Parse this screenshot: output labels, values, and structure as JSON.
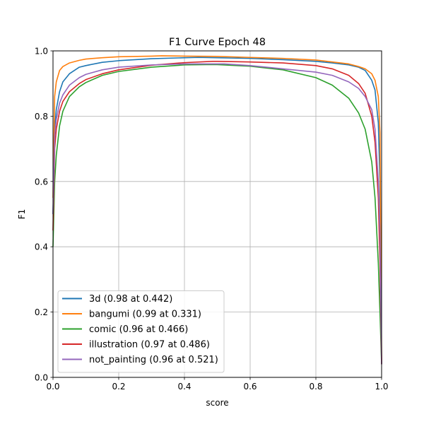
{
  "chart_data": {
    "type": "line",
    "title": "F1 Curve Epoch 48",
    "xlabel": "score",
    "ylabel": "F1",
    "xlim": [
      0,
      1
    ],
    "ylim": [
      0,
      1
    ],
    "xticks": [
      "0.0",
      "0.2",
      "0.4",
      "0.6",
      "0.8",
      "1.0"
    ],
    "yticks": [
      "0.0",
      "0.2",
      "0.4",
      "0.6",
      "0.8",
      "1.0"
    ],
    "grid": true,
    "legend_position": "bottom-left",
    "series": [
      {
        "name": "3d (0.98 at 0.442)",
        "color": "#1f77b4",
        "x": [
          0,
          0.005,
          0.01,
          0.02,
          0.03,
          0.05,
          0.08,
          0.1,
          0.15,
          0.2,
          0.3,
          0.4,
          0.442,
          0.5,
          0.6,
          0.7,
          0.8,
          0.85,
          0.9,
          0.93,
          0.95,
          0.97,
          0.98,
          0.99,
          0.995,
          1.0
        ],
        "y": [
          0.5,
          0.76,
          0.82,
          0.875,
          0.905,
          0.93,
          0.95,
          0.955,
          0.965,
          0.97,
          0.976,
          0.979,
          0.98,
          0.979,
          0.977,
          0.973,
          0.968,
          0.963,
          0.957,
          0.95,
          0.94,
          0.91,
          0.88,
          0.78,
          0.6,
          0.04
        ]
      },
      {
        "name": "bangumi (0.99 at 0.331)",
        "color": "#ff7f0e",
        "x": [
          0,
          0.005,
          0.01,
          0.02,
          0.03,
          0.05,
          0.08,
          0.1,
          0.15,
          0.2,
          0.3,
          0.331,
          0.4,
          0.5,
          0.6,
          0.7,
          0.8,
          0.85,
          0.9,
          0.93,
          0.95,
          0.97,
          0.98,
          0.99,
          0.995,
          1.0
        ],
        "y": [
          0.55,
          0.86,
          0.905,
          0.94,
          0.952,
          0.963,
          0.971,
          0.975,
          0.979,
          0.982,
          0.984,
          0.985,
          0.984,
          0.983,
          0.98,
          0.977,
          0.972,
          0.966,
          0.96,
          0.952,
          0.945,
          0.93,
          0.91,
          0.86,
          0.75,
          0.05
        ]
      },
      {
        "name": "comic (0.96 at 0.466)",
        "color": "#2ca02c",
        "x": [
          0,
          0.005,
          0.01,
          0.02,
          0.03,
          0.05,
          0.08,
          0.1,
          0.15,
          0.2,
          0.3,
          0.4,
          0.466,
          0.5,
          0.6,
          0.7,
          0.8,
          0.85,
          0.9,
          0.93,
          0.95,
          0.97,
          0.98,
          0.99,
          0.995,
          1.0
        ],
        "y": [
          0.4,
          0.6,
          0.68,
          0.77,
          0.815,
          0.86,
          0.89,
          0.903,
          0.925,
          0.937,
          0.95,
          0.957,
          0.958,
          0.958,
          0.953,
          0.942,
          0.918,
          0.895,
          0.855,
          0.81,
          0.76,
          0.66,
          0.55,
          0.35,
          0.2,
          0.04
        ]
      },
      {
        "name": "illustration (0.97 at 0.486)",
        "color": "#d62728",
        "x": [
          0,
          0.005,
          0.01,
          0.02,
          0.03,
          0.05,
          0.08,
          0.1,
          0.15,
          0.2,
          0.3,
          0.4,
          0.486,
          0.5,
          0.6,
          0.7,
          0.8,
          0.85,
          0.9,
          0.93,
          0.95,
          0.97,
          0.98,
          0.99,
          0.995,
          1.0
        ],
        "y": [
          0.45,
          0.7,
          0.76,
          0.815,
          0.845,
          0.875,
          0.9,
          0.912,
          0.93,
          0.942,
          0.956,
          0.964,
          0.968,
          0.968,
          0.966,
          0.963,
          0.955,
          0.945,
          0.925,
          0.9,
          0.87,
          0.8,
          0.72,
          0.55,
          0.35,
          0.04
        ]
      },
      {
        "name": "not_painting (0.96 at 0.521)",
        "color": "#9467bd",
        "x": [
          0,
          0.005,
          0.01,
          0.02,
          0.03,
          0.05,
          0.08,
          0.1,
          0.15,
          0.2,
          0.3,
          0.4,
          0.521,
          0.6,
          0.7,
          0.8,
          0.85,
          0.9,
          0.93,
          0.95,
          0.97,
          0.98,
          0.99,
          0.995,
          1.0
        ],
        "y": [
          0.5,
          0.74,
          0.79,
          0.84,
          0.865,
          0.895,
          0.918,
          0.928,
          0.942,
          0.95,
          0.957,
          0.96,
          0.96,
          0.955,
          0.945,
          0.935,
          0.925,
          0.905,
          0.885,
          0.86,
          0.82,
          0.76,
          0.6,
          0.45,
          0.04
        ]
      }
    ]
  }
}
